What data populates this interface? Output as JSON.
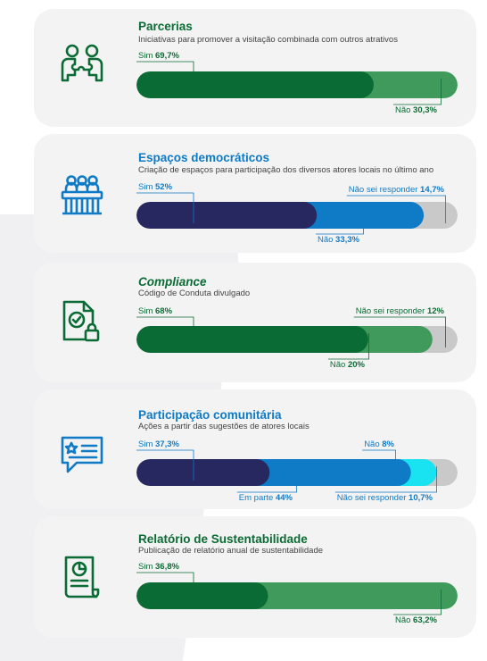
{
  "colors": {
    "green_dark": "#0b6b34",
    "green_light": "#3f9a5b",
    "navy": "#27285f",
    "blue": "#0f7ac5",
    "cyan": "#19e3f0",
    "gray": "#c9c9c9",
    "green_text": "#0b6b34",
    "blue_text": "#0f7ac5"
  },
  "chart_data": [
    {
      "type": "bar",
      "title": "Parcerias",
      "subtitle": "Iniciativas para promover a visitação combinada com outros atrativos",
      "icon": "handshake-puzzle-icon",
      "categories": [
        "Sim",
        "Não"
      ],
      "values": [
        69.7,
        30.3
      ],
      "labels": [
        "Sim 69,7%",
        "Não 30,3%"
      ],
      "colors": [
        "#0b6b34",
        "#3f9a5b"
      ],
      "title_color": "#0b6b34"
    },
    {
      "type": "bar",
      "title": "Espaços democráticos",
      "subtitle": "Criação de espaços para participação dos diversos atores locais no último ano",
      "icon": "assembly-podium-icon",
      "categories": [
        "Sim",
        "Não",
        "Não sei responder"
      ],
      "values": [
        52,
        33.3,
        14.7
      ],
      "labels": [
        "Sim 52%",
        "Não 33,3%",
        "Não sei responder 14,7%"
      ],
      "colors": [
        "#27285f",
        "#0f7ac5",
        "#c9c9c9"
      ],
      "title_color": "#0f7ac5"
    },
    {
      "type": "bar",
      "title": "Compliance",
      "subtitle": "Código de Conduta divulgado",
      "icon": "document-lock-icon",
      "categories": [
        "Sim",
        "Não",
        "Não sei responder"
      ],
      "values": [
        68,
        20,
        12
      ],
      "labels": [
        "Sim 68%",
        "Não 20%",
        "Não sei responder 12%"
      ],
      "colors": [
        "#0b6b34",
        "#3f9a5b",
        "#c9c9c9"
      ],
      "title_color": "#0b6b34"
    },
    {
      "type": "bar",
      "title": "Participação comunitária",
      "subtitle": "Ações a partir das sugestões de atores locais",
      "icon": "chat-star-icon",
      "categories": [
        "Sim",
        "Em parte",
        "Não",
        "Não sei responder"
      ],
      "values": [
        37.3,
        44,
        8,
        10.7
      ],
      "labels": [
        "Sim 37,3%",
        "Em parte 44%",
        "Não 8%",
        "Não sei responder 10,7%"
      ],
      "colors": [
        "#27285f",
        "#0f7ac5",
        "#19e3f0",
        "#c9c9c9"
      ],
      "title_color": "#0f7ac5"
    },
    {
      "type": "bar",
      "title": "Relatório de Sustentabilidade",
      "subtitle": "Publicação de relatório anual de sustentabilidade",
      "icon": "report-chart-icon",
      "categories": [
        "Sim",
        "Não"
      ],
      "values": [
        36.8,
        63.2
      ],
      "labels": [
        "Sim 36,8%",
        "Não 63,2%"
      ],
      "colors": [
        "#0b6b34",
        "#3f9a5b"
      ],
      "title_color": "#0b6b34"
    }
  ]
}
